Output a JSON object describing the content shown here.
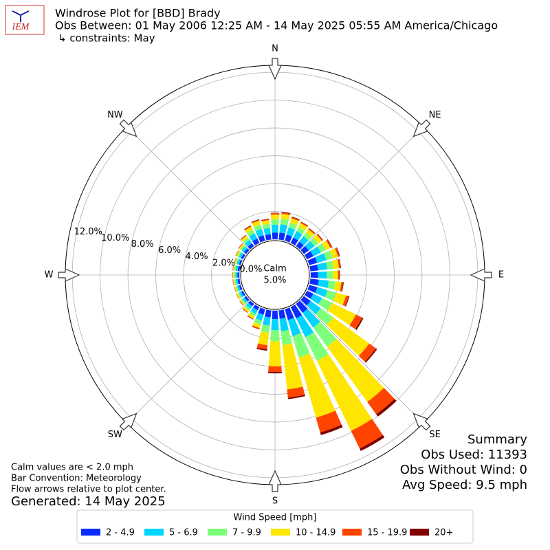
{
  "chart_data": {
    "type": "windrose",
    "logo": "IEM",
    "title": "Windrose Plot for [BBD] Brady",
    "subtitle": "Obs Between: 01 May 2006 12:25 AM - 14 May 2025 05:55 AM America/Chicago",
    "constraints": "↳ constraints: May",
    "compass": [
      "N",
      "NE",
      "E",
      "SE",
      "S",
      "SW",
      "W",
      "NW"
    ],
    "x": [
      0,
      10,
      20,
      30,
      40,
      50,
      60,
      70,
      80,
      90,
      100,
      110,
      120,
      130,
      140,
      150,
      160,
      170,
      180,
      190,
      200,
      210,
      220,
      230,
      240,
      250,
      260,
      270,
      280,
      290,
      300,
      310,
      320,
      330,
      340,
      350
    ],
    "ylim": [
      0,
      12.5
    ],
    "yticks": [
      {
        "value": 0,
        "label": "0.0%"
      },
      {
        "value": 2,
        "label": "2.0%"
      },
      {
        "value": 4,
        "label": "4.0%"
      },
      {
        "value": 6,
        "label": "6.0%"
      },
      {
        "value": 8,
        "label": "8.0%"
      },
      {
        "value": 10,
        "label": "10.0%"
      },
      {
        "value": 12,
        "label": "12.0%"
      }
    ],
    "grid": true,
    "calm_label": "Calm",
    "calm_value": 5.0,
    "calm_value_label": "5.0%",
    "legend_title": "Wind Speed [mph]",
    "series": [
      {
        "name": "2 - 4.9",
        "color": "#0a2cff",
        "values": [
          0.48,
          0.5,
          0.45,
          0.43,
          0.4,
          0.43,
          0.5,
          0.58,
          0.55,
          0.53,
          0.6,
          0.6,
          0.5,
          0.6,
          0.8,
          0.9,
          0.8,
          0.6,
          0.6,
          0.5,
          0.4,
          0.25,
          0.2,
          0.15,
          0.14,
          0.13,
          0.13,
          0.13,
          0.13,
          0.13,
          0.15,
          0.18,
          0.25,
          0.35,
          0.4,
          0.38
        ]
      },
      {
        "name": "5 - 6.9",
        "color": "#00d4ff",
        "values": [
          0.57,
          0.6,
          0.54,
          0.51,
          0.48,
          0.51,
          0.6,
          0.69,
          0.66,
          0.63,
          0.72,
          0.75,
          0.7,
          0.9,
          1.3,
          1.5,
          1.2,
          0.9,
          0.8,
          0.6,
          0.45,
          0.3,
          0.24,
          0.18,
          0.17,
          0.15,
          0.15,
          0.15,
          0.15,
          0.15,
          0.18,
          0.21,
          0.3,
          0.42,
          0.48,
          0.45
        ]
      },
      {
        "name": "7 - 9.9",
        "color": "#7dff7a",
        "values": [
          0.38,
          0.4,
          0.36,
          0.34,
          0.32,
          0.34,
          0.4,
          0.46,
          0.44,
          0.42,
          0.48,
          0.65,
          0.8,
          1.1,
          1.7,
          1.9,
          1.6,
          1.0,
          0.8,
          0.5,
          0.3,
          0.2,
          0.16,
          0.12,
          0.11,
          0.1,
          0.1,
          0.1,
          0.1,
          0.1,
          0.12,
          0.14,
          0.2,
          0.28,
          0.32,
          0.3
        ]
      },
      {
        "name": "10 - 14.9",
        "color": "#ffe600",
        "values": [
          0.34,
          0.36,
          0.32,
          0.31,
          0.29,
          0.31,
          0.36,
          0.41,
          0.4,
          0.38,
          0.43,
          0.75,
          1.9,
          3.2,
          4.9,
          5.6,
          4.5,
          3.2,
          1.8,
          0.9,
          0.25,
          0.18,
          0.14,
          0.11,
          0.1,
          0.09,
          0.09,
          0.09,
          0.09,
          0.09,
          0.11,
          0.12,
          0.18,
          0.25,
          0.29,
          0.27
        ]
      },
      {
        "name": "15 - 19.9",
        "color": "#ff4400",
        "values": [
          0.1,
          0.1,
          0.09,
          0.08,
          0.08,
          0.08,
          0.1,
          0.12,
          0.11,
          0.1,
          0.12,
          0.2,
          0.5,
          0.6,
          1.1,
          1.4,
          1.1,
          0.6,
          0.4,
          0.3,
          0.08,
          0.05,
          0.04,
          0.03,
          0.02,
          0.02,
          0.02,
          0.02,
          0.02,
          0.02,
          0.03,
          0.04,
          0.05,
          0.07,
          0.08,
          0.07
        ]
      },
      {
        "name": "20+",
        "color": "#800000",
        "values": [
          0.03,
          0.04,
          0.04,
          0.03,
          0.03,
          0.03,
          0.04,
          0.04,
          0.04,
          0.04,
          0.05,
          0.05,
          0.1,
          0.1,
          0.2,
          0.2,
          0.2,
          0.1,
          0.1,
          0.1,
          0.02,
          0.02,
          0.02,
          0.01,
          0.01,
          0.01,
          0.01,
          0.01,
          0.01,
          0.01,
          0.01,
          0.01,
          0.02,
          0.03,
          0.03,
          0.03
        ]
      }
    ],
    "summary": [
      "Summary",
      "Obs Used: 11393",
      "Obs Without Wind: 0",
      "Avg Speed: 9.5 mph"
    ],
    "notes": [
      "Calm values are < 2.0 mph",
      "Bar Convention: Meteorology",
      "Flow arrows relative to plot center."
    ],
    "generated": "Generated: 14 May 2025"
  }
}
